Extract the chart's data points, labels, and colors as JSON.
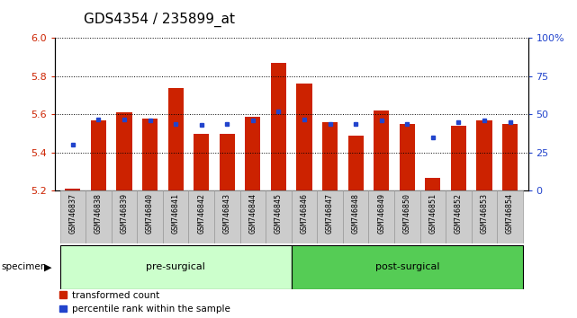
{
  "title": "GDS4354 / 235899_at",
  "samples": [
    "GSM746837",
    "GSM746838",
    "GSM746839",
    "GSM746840",
    "GSM746841",
    "GSM746842",
    "GSM746843",
    "GSM746844",
    "GSM746845",
    "GSM746846",
    "GSM746847",
    "GSM746848",
    "GSM746849",
    "GSM746850",
    "GSM746851",
    "GSM746852",
    "GSM746853",
    "GSM746854"
  ],
  "transformed_count": [
    5.21,
    5.57,
    5.61,
    5.58,
    5.74,
    5.5,
    5.5,
    5.59,
    5.87,
    5.76,
    5.56,
    5.49,
    5.62,
    5.55,
    5.27,
    5.54,
    5.57,
    5.55
  ],
  "percentile_rank": [
    30,
    47,
    47,
    46,
    44,
    43,
    44,
    46,
    52,
    47,
    44,
    44,
    46,
    44,
    35,
    45,
    46,
    45
  ],
  "groups": [
    {
      "label": "pre-surgical",
      "start": 0,
      "end": 8,
      "color": "#ccffcc"
    },
    {
      "label": "post-surgical",
      "start": 9,
      "end": 17,
      "color": "#55cc55"
    }
  ],
  "ylim_left": [
    5.2,
    6.0
  ],
  "ylim_right": [
    0,
    100
  ],
  "bar_color": "#cc2200",
  "dot_color": "#2244cc",
  "grid_color": "#000000",
  "background_color": "#ffffff",
  "plot_bg_color": "#ffffff",
  "tick_label_color_left": "#cc2200",
  "tick_label_color_right": "#2244cc",
  "title_fontsize": 11,
  "yticks_left": [
    5.2,
    5.4,
    5.6,
    5.8,
    6.0
  ],
  "yticks_right": [
    0,
    25,
    50,
    75,
    100
  ],
  "ytick_labels_right": [
    "0",
    "25",
    "50",
    "75",
    "100%"
  ],
  "xlabel_bg_color": "#cccccc",
  "xlabel_border_color": "#999999"
}
